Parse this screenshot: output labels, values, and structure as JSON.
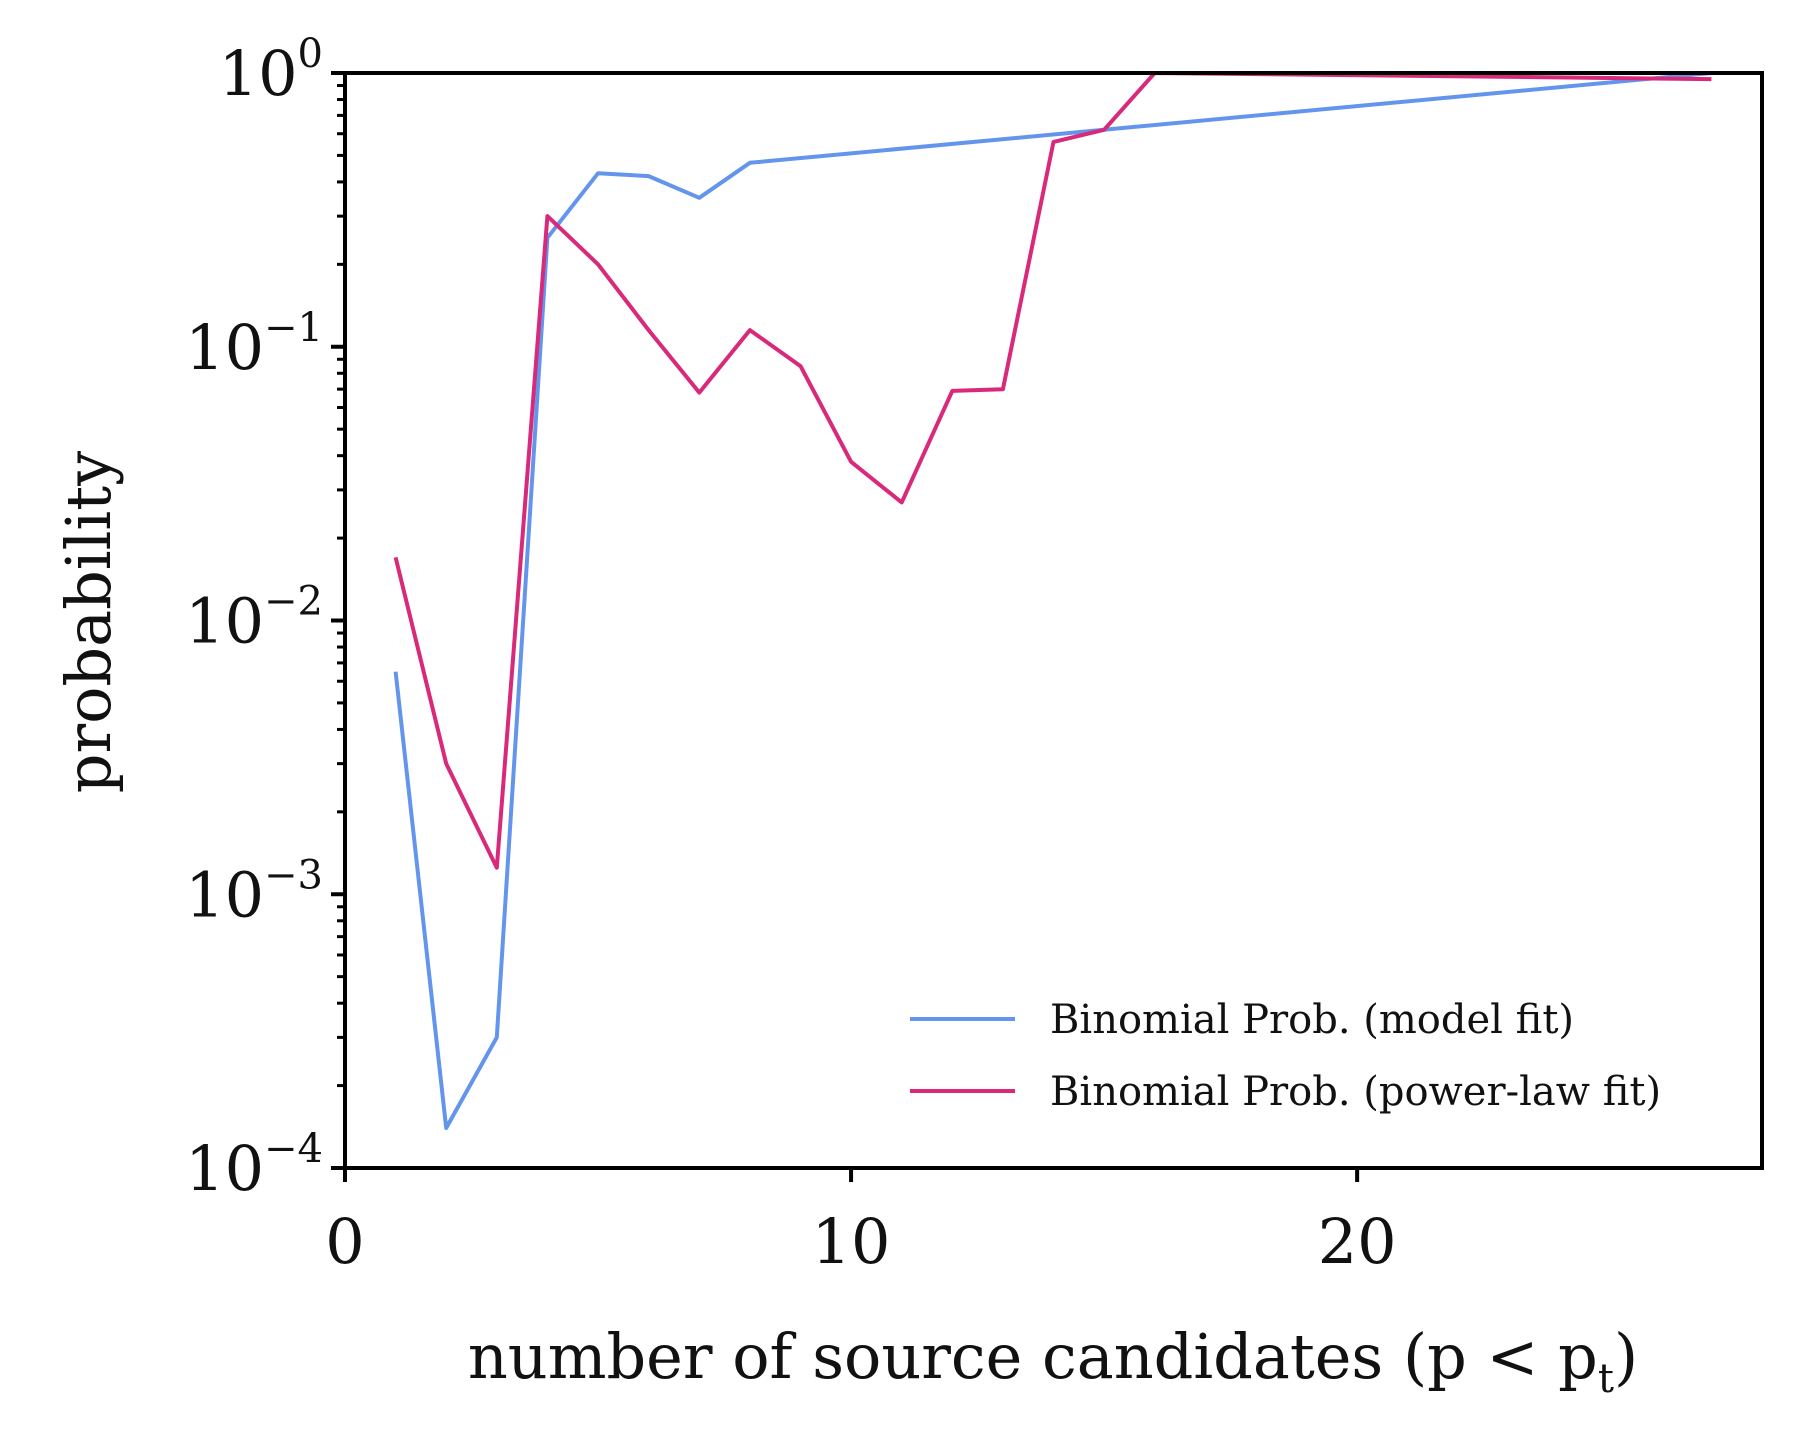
{
  "chart_data": {
    "type": "line",
    "title": "",
    "xlabel": "number of source candidates (p < p",
    "xlabel_sub": "t",
    "xlabel_close": ")",
    "ylabel": "probability",
    "xlim": [
      0,
      28
    ],
    "ylim": [
      0.0001,
      1
    ],
    "yscale": "log",
    "x_ticks": [
      0,
      10,
      20
    ],
    "y_ticks": [
      {
        "value": 0.0001,
        "base": "10",
        "exp": "−4"
      },
      {
        "value": 0.001,
        "base": "10",
        "exp": "−3"
      },
      {
        "value": 0.01,
        "base": "10",
        "exp": "−2"
      },
      {
        "value": 0.1,
        "base": "10",
        "exp": "−1"
      },
      {
        "value": 1,
        "base": "10",
        "exp": "0"
      }
    ],
    "grid": false,
    "legend_position": "lower-right",
    "series": [
      {
        "name": "Binomial Prob. (model fit)",
        "color": "#6495ed",
        "x": [
          1,
          2,
          3,
          4,
          5,
          6,
          7,
          8,
          27
        ],
        "y": [
          0.0065,
          0.00014,
          0.0003,
          0.25,
          0.43,
          0.42,
          0.35,
          0.47,
          1.0
        ]
      },
      {
        "name": "Binomial Prob. (power-law fit)",
        "color": "#d9297a",
        "x": [
          1,
          2,
          3,
          4,
          5,
          6,
          7,
          8,
          9,
          10,
          11,
          12,
          13,
          14,
          15,
          16,
          27
        ],
        "y": [
          0.017,
          0.003,
          0.00125,
          0.3,
          0.2,
          0.115,
          0.068,
          0.115,
          0.085,
          0.038,
          0.027,
          0.069,
          0.07,
          0.56,
          0.62,
          1.0,
          0.95
        ]
      }
    ]
  }
}
